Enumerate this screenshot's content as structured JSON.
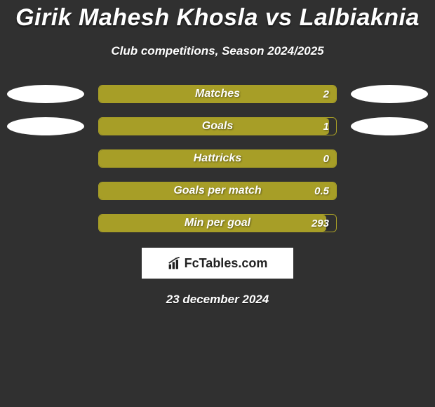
{
  "title": "Girik Mahesh Khosla vs Lalbiaknia",
  "subtitle": "Club competitions, Season 2024/2025",
  "stats": [
    {
      "label": "Matches",
      "value": "2",
      "fill_ratio": 1.0,
      "show_badges": true
    },
    {
      "label": "Goals",
      "value": "1",
      "fill_ratio": 0.97,
      "show_badges": true
    },
    {
      "label": "Hattricks",
      "value": "0",
      "fill_ratio": 1.0,
      "show_badges": false
    },
    {
      "label": "Goals per match",
      "value": "0.5",
      "fill_ratio": 1.0,
      "show_badges": false
    },
    {
      "label": "Min per goal",
      "value": "293",
      "fill_ratio": 0.96,
      "show_badges": false
    }
  ],
  "colors": {
    "bar_fill": "#a79e27",
    "bar_border": "#a79e27",
    "bar_bg": "#303030",
    "badge": "#ffffff",
    "page_bg": "#303030",
    "text": "#ffffff"
  },
  "brand": {
    "name": "FcTables.com"
  },
  "date": "23 december 2024"
}
